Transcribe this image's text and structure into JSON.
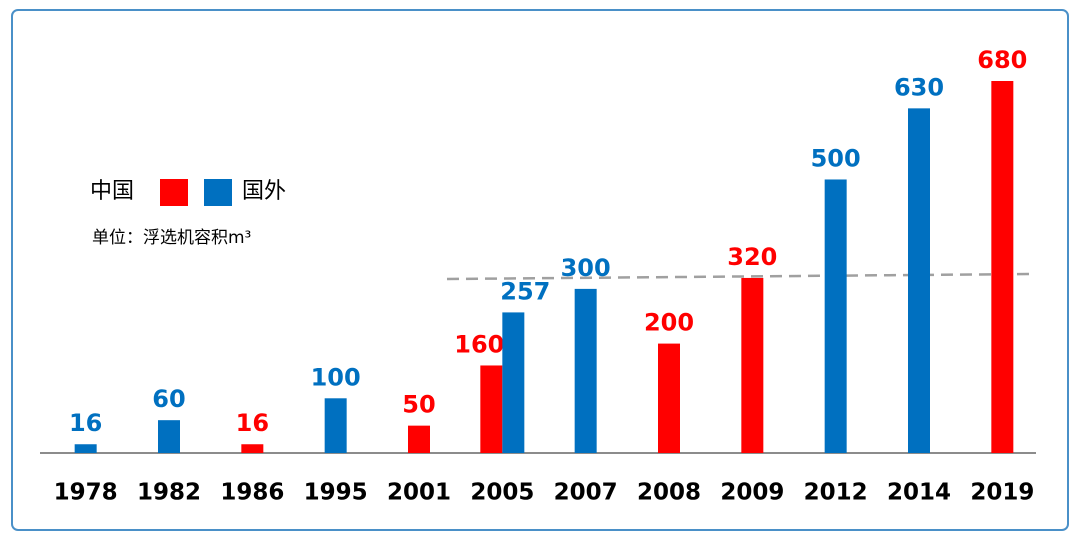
{
  "chart_data": {
    "type": "bar",
    "legend_label_left": "中国",
    "legend_label_right": "国外",
    "unit_note": "单位：浮选机容积m³",
    "categories": [
      "1978",
      "1982",
      "1986",
      "1995",
      "2001",
      "2005",
      "2007",
      "2008",
      "2009",
      "2012",
      "2014",
      "2019"
    ],
    "series": [
      {
        "name": "中国",
        "color": "#ff0000",
        "values": [
          null,
          null,
          16,
          null,
          50,
          160,
          null,
          200,
          320,
          null,
          null,
          680
        ]
      },
      {
        "name": "国外",
        "color": "#0070c0",
        "values": [
          16,
          60,
          null,
          100,
          null,
          257,
          300,
          null,
          null,
          500,
          630,
          null
        ]
      }
    ]
  }
}
